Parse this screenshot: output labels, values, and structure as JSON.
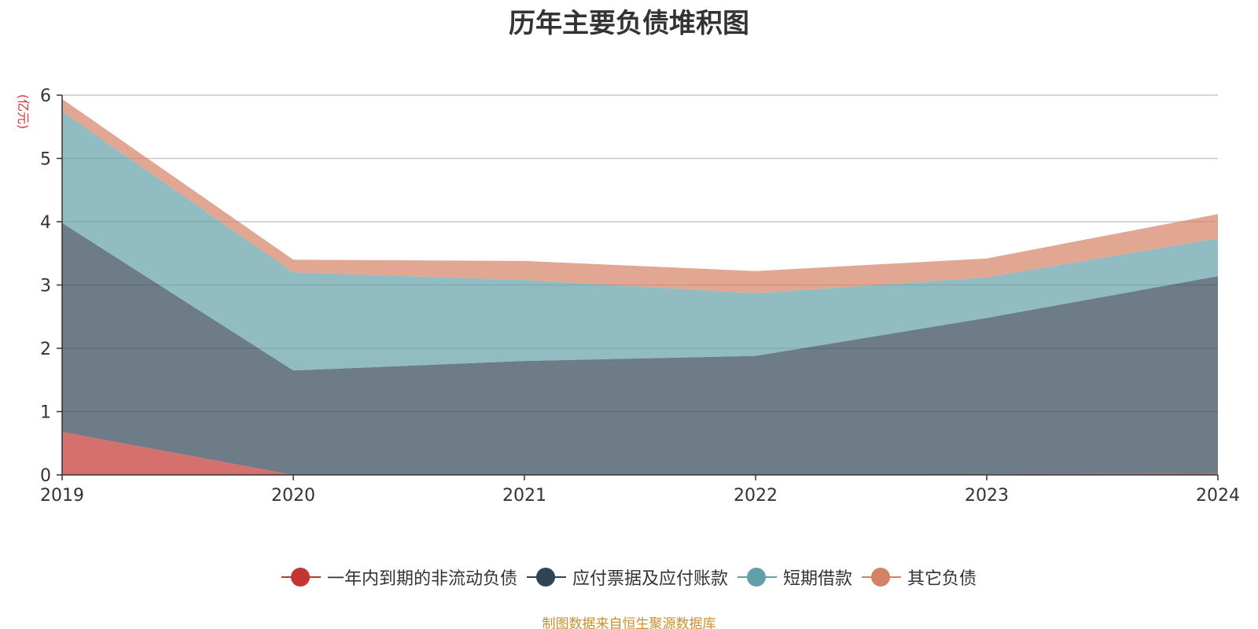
{
  "title": "历年主要负债堆积图",
  "source_text": "制图数据来自恒生聚源数据库",
  "chart_data": {
    "type": "area",
    "stacked": true,
    "title": "历年主要负债堆积图",
    "unit_label": "(亿元)",
    "x": [
      "2019",
      "2020",
      "2021",
      "2022",
      "2023",
      "2024"
    ],
    "ylim": [
      0,
      6
    ],
    "yticks": [
      0,
      1,
      2,
      3,
      4,
      5,
      6
    ],
    "grid": true,
    "legend_position": "bottom",
    "series": [
      {
        "name": "一年内到期的非流动负债",
        "color": "#c23531",
        "values": [
          0.68,
          0.0,
          0.0,
          0.0,
          0.01,
          0.02
        ]
      },
      {
        "name": "应付票据及应付账款",
        "color": "#2f4554",
        "values": [
          3.3,
          1.65,
          1.8,
          1.88,
          2.47,
          3.12
        ]
      },
      {
        "name": "短期借款",
        "color": "#61a0a8",
        "values": [
          1.76,
          1.55,
          1.28,
          0.99,
          0.64,
          0.6
        ]
      },
      {
        "name": "其它负债",
        "color": "#d48265",
        "values": [
          0.2,
          0.2,
          0.3,
          0.35,
          0.3,
          0.38
        ]
      }
    ]
  }
}
